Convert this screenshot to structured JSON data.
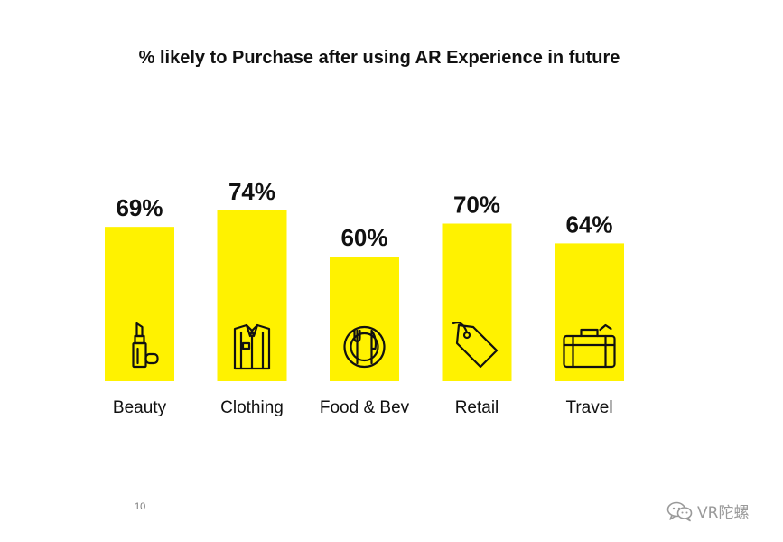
{
  "chart_data": {
    "type": "bar",
    "title": "% likely to Purchase after using AR Experience in future",
    "categories": [
      "Beauty",
      "Clothing",
      "Food & Bev",
      "Retail",
      "Travel"
    ],
    "values": [
      69,
      74,
      60,
      70,
      64
    ],
    "value_labels": [
      "69%",
      "74%",
      "60%",
      "70%",
      "64%"
    ],
    "icons": [
      "lipstick-icon",
      "shirt-icon",
      "plate-cutlery-icon",
      "price-tag-icon",
      "suitcase-icon"
    ],
    "xlabel": "",
    "ylabel": "",
    "ylim": [
      0,
      100
    ],
    "grid": false,
    "legend": "none",
    "bar_color": "#FFF200"
  },
  "footer": {
    "page_number": "10",
    "watermark_text": "VR陀螺",
    "watermark_icon": "wechat-icon"
  }
}
